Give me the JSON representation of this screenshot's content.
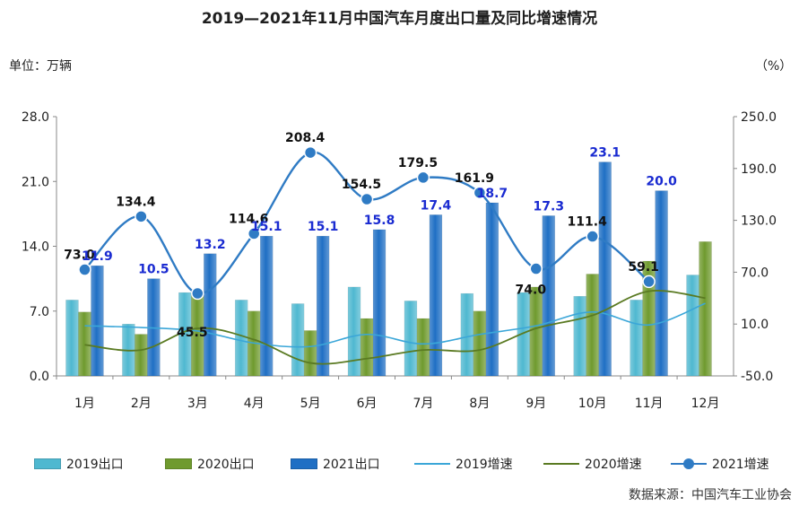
{
  "title": "2019—2021年11月中国汽车月度出口量及同比增速情况",
  "unit_left": "单位：万辆",
  "unit_right": "（%）",
  "source": "数据来源：中国汽车工业协会",
  "colors": {
    "bar2019": "#4fb8d0",
    "bar2020": "#6f9a2e",
    "bar2021": "#1f6fc4",
    "line2019": "#3aa6d8",
    "line2020": "#5a7a22",
    "line2021": "#2f7bc4",
    "label2021": "#1a2bd1",
    "axis": "#888888"
  },
  "chart_data": {
    "type": "bar",
    "categories": [
      "1月",
      "2月",
      "3月",
      "4月",
      "5月",
      "6月",
      "7月",
      "8月",
      "9月",
      "10月",
      "11月",
      "12月"
    ],
    "y_left": {
      "ylim": [
        0,
        28
      ],
      "ticks": [
        "0.0",
        "7.0",
        "14.0",
        "21.0",
        "28.0"
      ]
    },
    "y_right": {
      "ylim": [
        -50,
        250
      ],
      "ticks": [
        "-50.0",
        "10.0",
        "70.0",
        "130.0",
        "190.0",
        "250.0"
      ]
    },
    "series": [
      {
        "name": "2019出口",
        "kind": "bar",
        "axis": "left",
        "values": [
          8.2,
          5.6,
          9.0,
          8.2,
          7.8,
          9.6,
          8.1,
          8.9,
          9.0,
          8.6,
          8.2,
          10.9
        ]
      },
      {
        "name": "2020出口",
        "kind": "bar",
        "axis": "left",
        "values": [
          6.9,
          4.5,
          9.0,
          7.0,
          4.9,
          6.2,
          6.2,
          7.0,
          9.6,
          11.0,
          12.4,
          14.5
        ]
      },
      {
        "name": "2021出口",
        "kind": "bar",
        "axis": "left",
        "values": [
          11.9,
          10.5,
          13.2,
          15.1,
          15.1,
          15.8,
          17.4,
          18.7,
          17.3,
          23.1,
          20.0,
          null
        ],
        "labels": [
          "11.9",
          "10.5",
          "13.2",
          "15.1",
          "15.1",
          "15.8",
          "17.4",
          "18.7",
          "17.3",
          "23.1",
          "20.0",
          ""
        ]
      },
      {
        "name": "2019增速",
        "kind": "line",
        "axis": "right",
        "values": [
          8,
          6,
          2,
          -12,
          -16,
          -2,
          -13,
          -2,
          8,
          24,
          9,
          34
        ]
      },
      {
        "name": "2020增速",
        "kind": "line",
        "axis": "right",
        "values": [
          -14,
          -20,
          5,
          -8,
          -35,
          -30,
          -20,
          -20,
          5,
          20,
          48,
          40
        ]
      },
      {
        "name": "2021增速",
        "kind": "line",
        "axis": "right",
        "markers": true,
        "values": [
          73.0,
          134.4,
          45.5,
          114.6,
          208.4,
          154.5,
          179.5,
          161.9,
          74.0,
          111.4,
          59.1,
          null
        ],
        "labels": [
          "73.0",
          "134.4",
          "45.5",
          "114.6",
          "208.4",
          "154.5",
          "179.5",
          "161.9",
          "74.0",
          "111.4",
          "59.1",
          ""
        ]
      }
    ],
    "legend_position": "bottom"
  }
}
